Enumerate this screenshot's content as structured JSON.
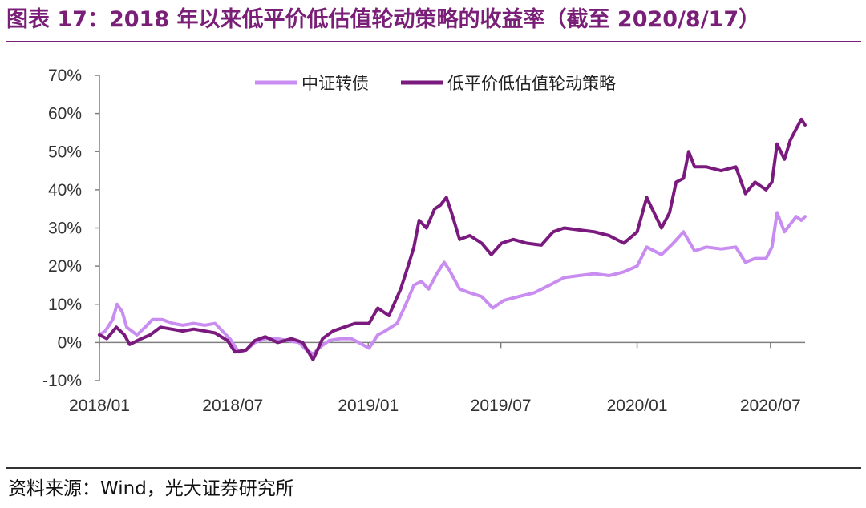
{
  "title": "图表 17：2018 年以来低平价低估值轮动策略的收益率（截至 2020/8/17）",
  "source": "资料来源：Wind，光大证券研究所",
  "colors": {
    "title": "#7a1f77",
    "series_light": "#c98cf0",
    "series_dark": "#7b1a7e"
  },
  "chart_data": {
    "type": "line",
    "title": "",
    "xlabel": "",
    "ylabel": "",
    "ylim": [
      -0.1,
      0.7
    ],
    "xlim": [
      "2018-01-02",
      "2020-08-17"
    ],
    "grid": false,
    "legend_position": "top-center",
    "y_ticks": [
      {
        "value": 0.7,
        "label": "70%"
      },
      {
        "value": 0.6,
        "label": "60%"
      },
      {
        "value": 0.5,
        "label": "50%"
      },
      {
        "value": 0.4,
        "label": "40%"
      },
      {
        "value": 0.3,
        "label": "30%"
      },
      {
        "value": 0.2,
        "label": "20%"
      },
      {
        "value": 0.1,
        "label": "10%"
      },
      {
        "value": 0.0,
        "label": "0%"
      },
      {
        "value": -0.1,
        "label": "-10%"
      }
    ],
    "x_ticks": [
      {
        "date": "2018-01-02",
        "label": "2018/01"
      },
      {
        "date": "2018-07-02",
        "label": "2018/07"
      },
      {
        "date": "2019-01-02",
        "label": "2019/01"
      },
      {
        "date": "2019-07-01",
        "label": "2019/07"
      },
      {
        "date": "2020-01-02",
        "label": "2020/01"
      },
      {
        "date": "2020-07-01",
        "label": "2020/07"
      }
    ],
    "series": [
      {
        "name": "中证转债",
        "color": "#c98cf0",
        "points": [
          [
            "2018-01-02",
            0.02
          ],
          [
            "2018-01-10",
            0.03
          ],
          [
            "2018-01-20",
            0.06
          ],
          [
            "2018-01-26",
            0.1
          ],
          [
            "2018-02-02",
            0.08
          ],
          [
            "2018-02-08",
            0.04
          ],
          [
            "2018-02-22",
            0.02
          ],
          [
            "2018-03-05",
            0.04
          ],
          [
            "2018-03-15",
            0.06
          ],
          [
            "2018-03-28",
            0.06
          ],
          [
            "2018-04-12",
            0.05
          ],
          [
            "2018-04-25",
            0.045
          ],
          [
            "2018-05-10",
            0.05
          ],
          [
            "2018-05-25",
            0.045
          ],
          [
            "2018-06-08",
            0.05
          ],
          [
            "2018-06-18",
            0.03
          ],
          [
            "2018-06-28",
            0.01
          ],
          [
            "2018-07-10",
            -0.025
          ],
          [
            "2018-07-20",
            -0.02
          ],
          [
            "2018-08-01",
            0.0
          ],
          [
            "2018-08-15",
            0.01
          ],
          [
            "2018-08-30",
            0.01
          ],
          [
            "2018-09-15",
            0.005
          ],
          [
            "2018-09-30",
            0.0
          ],
          [
            "2018-10-10",
            -0.02
          ],
          [
            "2018-10-19",
            -0.03
          ],
          [
            "2018-10-30",
            -0.01
          ],
          [
            "2018-11-10",
            0.005
          ],
          [
            "2018-11-25",
            0.01
          ],
          [
            "2018-12-10",
            0.01
          ],
          [
            "2018-12-20",
            0.0
          ],
          [
            "2019-01-03",
            -0.015
          ],
          [
            "2019-01-15",
            0.02
          ],
          [
            "2019-01-25",
            0.03
          ],
          [
            "2019-02-10",
            0.05
          ],
          [
            "2019-02-22",
            0.1
          ],
          [
            "2019-03-05",
            0.15
          ],
          [
            "2019-03-15",
            0.16
          ],
          [
            "2019-03-25",
            0.14
          ],
          [
            "2019-04-05",
            0.18
          ],
          [
            "2019-04-15",
            0.21
          ],
          [
            "2019-04-22",
            0.19
          ],
          [
            "2019-05-06",
            0.14
          ],
          [
            "2019-05-20",
            0.13
          ],
          [
            "2019-06-05",
            0.12
          ],
          [
            "2019-06-20",
            0.09
          ],
          [
            "2019-07-05",
            0.11
          ],
          [
            "2019-07-25",
            0.12
          ],
          [
            "2019-08-15",
            0.13
          ],
          [
            "2019-09-05",
            0.15
          ],
          [
            "2019-09-25",
            0.17
          ],
          [
            "2019-10-15",
            0.175
          ],
          [
            "2019-11-05",
            0.18
          ],
          [
            "2019-11-25",
            0.175
          ],
          [
            "2019-12-15",
            0.185
          ],
          [
            "2020-01-02",
            0.2
          ],
          [
            "2020-01-15",
            0.25
          ],
          [
            "2020-02-04",
            0.23
          ],
          [
            "2020-02-20",
            0.26
          ],
          [
            "2020-03-05",
            0.29
          ],
          [
            "2020-03-20",
            0.24
          ],
          [
            "2020-04-05",
            0.25
          ],
          [
            "2020-04-25",
            0.245
          ],
          [
            "2020-05-15",
            0.25
          ],
          [
            "2020-05-28",
            0.21
          ],
          [
            "2020-06-10",
            0.22
          ],
          [
            "2020-06-25",
            0.22
          ],
          [
            "2020-07-03",
            0.25
          ],
          [
            "2020-07-10",
            0.34
          ],
          [
            "2020-07-20",
            0.29
          ],
          [
            "2020-07-28",
            0.31
          ],
          [
            "2020-08-05",
            0.33
          ],
          [
            "2020-08-12",
            0.32
          ],
          [
            "2020-08-17",
            0.33
          ]
        ]
      },
      {
        "name": "低平价低估值轮动策略",
        "color": "#7b1a7e",
        "points": [
          [
            "2018-01-02",
            0.02
          ],
          [
            "2018-01-12",
            0.01
          ],
          [
            "2018-01-25",
            0.04
          ],
          [
            "2018-02-05",
            0.02
          ],
          [
            "2018-02-12",
            -0.005
          ],
          [
            "2018-02-28",
            0.01
          ],
          [
            "2018-03-12",
            0.02
          ],
          [
            "2018-03-26",
            0.04
          ],
          [
            "2018-04-10",
            0.035
          ],
          [
            "2018-04-25",
            0.03
          ],
          [
            "2018-05-10",
            0.035
          ],
          [
            "2018-05-25",
            0.03
          ],
          [
            "2018-06-08",
            0.025
          ],
          [
            "2018-06-25",
            0.005
          ],
          [
            "2018-07-05",
            -0.025
          ],
          [
            "2018-07-20",
            -0.02
          ],
          [
            "2018-08-01",
            0.005
          ],
          [
            "2018-08-15",
            0.015
          ],
          [
            "2018-09-01",
            0.0
          ],
          [
            "2018-09-20",
            0.01
          ],
          [
            "2018-10-05",
            0.0
          ],
          [
            "2018-10-19",
            -0.045
          ],
          [
            "2018-11-01",
            0.01
          ],
          [
            "2018-11-15",
            0.03
          ],
          [
            "2018-11-30",
            0.04
          ],
          [
            "2018-12-15",
            0.05
          ],
          [
            "2019-01-03",
            0.05
          ],
          [
            "2019-01-15",
            0.09
          ],
          [
            "2019-01-30",
            0.07
          ],
          [
            "2019-02-15",
            0.14
          ],
          [
            "2019-02-25",
            0.2
          ],
          [
            "2019-03-05",
            0.25
          ],
          [
            "2019-03-12",
            0.32
          ],
          [
            "2019-03-22",
            0.3
          ],
          [
            "2019-04-02",
            0.35
          ],
          [
            "2019-04-10",
            0.36
          ],
          [
            "2019-04-18",
            0.38
          ],
          [
            "2019-04-25",
            0.34
          ],
          [
            "2019-05-06",
            0.27
          ],
          [
            "2019-05-20",
            0.28
          ],
          [
            "2019-06-05",
            0.26
          ],
          [
            "2019-06-18",
            0.23
          ],
          [
            "2019-07-02",
            0.26
          ],
          [
            "2019-07-18",
            0.27
          ],
          [
            "2019-08-05",
            0.26
          ],
          [
            "2019-08-25",
            0.255
          ],
          [
            "2019-09-10",
            0.29
          ],
          [
            "2019-09-25",
            0.3
          ],
          [
            "2019-10-15",
            0.295
          ],
          [
            "2019-11-05",
            0.29
          ],
          [
            "2019-11-25",
            0.28
          ],
          [
            "2019-12-15",
            0.26
          ],
          [
            "2020-01-02",
            0.29
          ],
          [
            "2020-01-15",
            0.38
          ],
          [
            "2020-02-04",
            0.3
          ],
          [
            "2020-02-15",
            0.34
          ],
          [
            "2020-02-24",
            0.42
          ],
          [
            "2020-03-05",
            0.43
          ],
          [
            "2020-03-12",
            0.5
          ],
          [
            "2020-03-20",
            0.46
          ],
          [
            "2020-04-05",
            0.46
          ],
          [
            "2020-04-25",
            0.45
          ],
          [
            "2020-05-15",
            0.46
          ],
          [
            "2020-05-28",
            0.39
          ],
          [
            "2020-06-10",
            0.42
          ],
          [
            "2020-06-25",
            0.4
          ],
          [
            "2020-07-03",
            0.42
          ],
          [
            "2020-07-10",
            0.52
          ],
          [
            "2020-07-20",
            0.48
          ],
          [
            "2020-07-28",
            0.53
          ],
          [
            "2020-08-05",
            0.56
          ],
          [
            "2020-08-12",
            0.585
          ],
          [
            "2020-08-17",
            0.57
          ]
        ]
      }
    ]
  }
}
